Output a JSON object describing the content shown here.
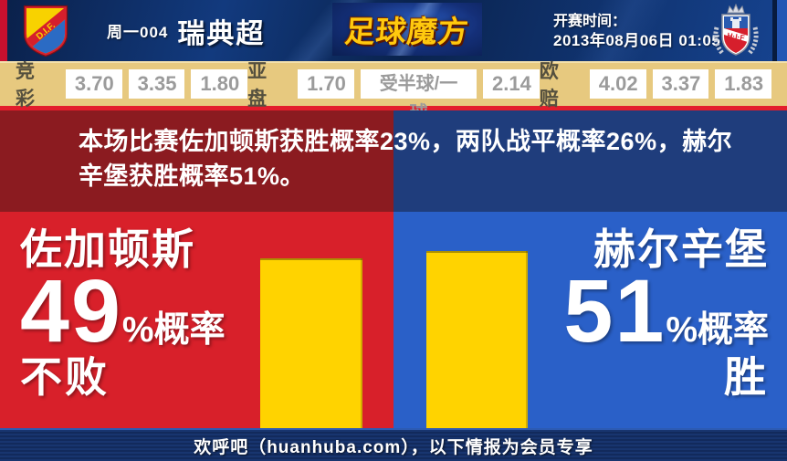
{
  "header": {
    "match_code": "周一004",
    "league": "瑞典超",
    "brand": "足球魔方",
    "kickoff_label": "开赛时间：",
    "kickoff_time": "2013年08月06日 01:05",
    "home_logo_text": "D.I.F.",
    "away_logo_text": "HIF"
  },
  "odds": {
    "groups": [
      {
        "label": "竞彩",
        "values": [
          "3.70",
          "3.35",
          "1.80"
        ]
      },
      {
        "label": "亚盘",
        "values": [
          "1.70",
          "受半球/一球",
          "2.14"
        ]
      },
      {
        "label": "欧赔",
        "values": [
          "4.02",
          "3.37",
          "1.83"
        ]
      }
    ]
  },
  "banner": {
    "text": "本场比赛佐加顿斯获胜概率23%，两队战平概率26%，赫尔辛堡获胜概率51%。"
  },
  "main": {
    "left": {
      "team": "佐加顿斯",
      "percent": "49",
      "percent_suffix": "%概率",
      "outcome": "不败"
    },
    "right": {
      "team": "赫尔辛堡",
      "percent": "51",
      "percent_suffix": "%概率",
      "outcome": "胜"
    }
  },
  "footer": {
    "text": "欢呼吧（huanhuba.com），以下情报为会员专享"
  },
  "chart_data": {
    "type": "bar",
    "categories": [
      "佐加顿斯",
      "赫尔辛堡"
    ],
    "values": [
      49,
      51
    ],
    "value_unit": "%概率",
    "outcomes": [
      "不败",
      "胜"
    ],
    "home_win_prob_pct": 23,
    "draw_prob_pct": 26,
    "away_win_prob_pct": 51,
    "bar_color": "#ffd300",
    "left_bg": "#d8202a",
    "right_bg": "#2a60c8"
  },
  "colors": {
    "header_blue": "#123a7e",
    "accent_red_strip": "#c8102e",
    "accent_blue_strip": "#2456b4",
    "odds_bg": "#e7c97f",
    "divider_red": "#e31d2c",
    "banner_dark_red": "#8b1b20",
    "banner_dark_blue": "#1f3d7c",
    "footer_navy": "#15306a",
    "brand_gold": "#ffc90e"
  }
}
